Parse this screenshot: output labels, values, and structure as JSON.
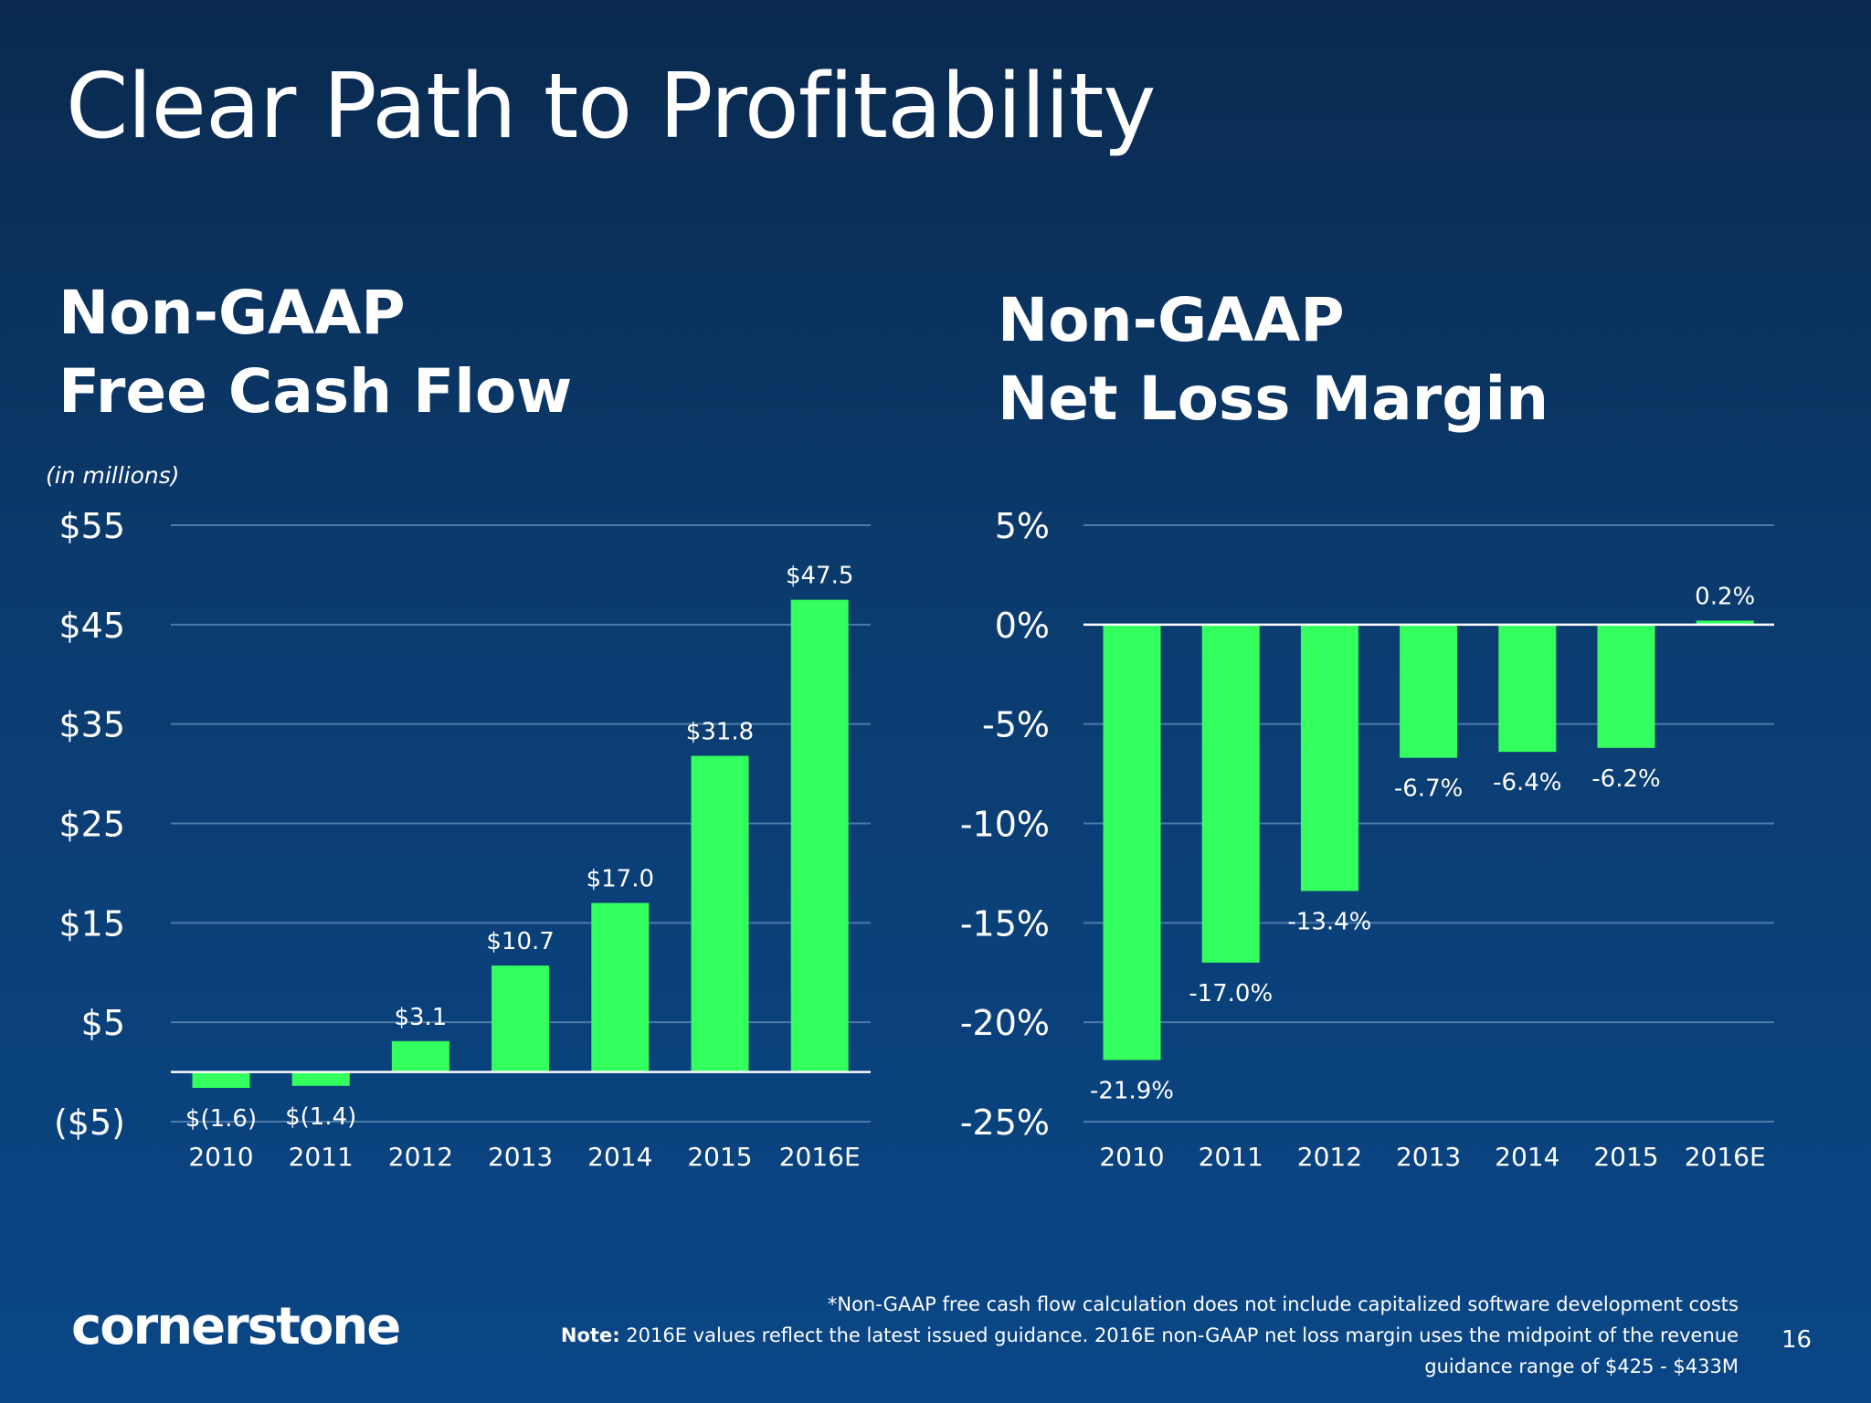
{
  "title": "Clear Path to Profitability",
  "logo": "cornerstone",
  "page_number": "16",
  "footnotes": {
    "line1": "*Non-GAAP free cash flow calculation does not include capitalized software development costs",
    "note_label": "Note:",
    "line2": " 2016E values reflect the latest issued guidance.  2016E non-GAAP net loss margin uses the midpoint of the revenue",
    "line3": "guidance range of $425 - $433M"
  },
  "colors": {
    "bar": "#33ff5e",
    "grid": "#4d7aa8",
    "zero": "#ffffff"
  },
  "chart_data": [
    {
      "type": "bar",
      "title_line1": "Non-GAAP",
      "title_line2": "Free Cash Flow",
      "unit_note": "(in millions)",
      "categories": [
        "2010",
        "2011",
        "2012",
        "2013",
        "2014",
        "2015",
        "2016E"
      ],
      "values": [
        -1.6,
        -1.4,
        3.1,
        10.7,
        17.0,
        31.8,
        47.5
      ],
      "labels": [
        "$(1.6)",
        "$(1.4)",
        "$3.1",
        "$10.7",
        "$17.0",
        "$31.8",
        "$47.5"
      ],
      "yticks": [
        55,
        45,
        35,
        25,
        15,
        5,
        -5
      ],
      "ytick_labels": [
        "$55",
        "$45",
        "$35",
        "$25",
        "$15",
        "$5",
        "($5)"
      ],
      "ylim": [
        -5,
        55
      ],
      "grid": true
    },
    {
      "type": "bar",
      "title_line1": "Non-GAAP",
      "title_line2": "Net Loss Margin",
      "categories": [
        "2010",
        "2011",
        "2012",
        "2013",
        "2014",
        "2015",
        "2016E"
      ],
      "values": [
        -21.9,
        -17.0,
        -13.4,
        -6.7,
        -6.4,
        -6.2,
        0.2
      ],
      "labels": [
        "-21.9%",
        "-17.0%",
        "-13.4%",
        "-6.7%",
        "-6.4%",
        "-6.2%",
        "0.2%"
      ],
      "yticks": [
        5,
        0,
        -5,
        -10,
        -15,
        -20,
        -25
      ],
      "ytick_labels": [
        "5%",
        "0%",
        "-5%",
        "-10%",
        "-15%",
        "-20%",
        "-25%"
      ],
      "ylim": [
        -25,
        5
      ],
      "grid": true
    }
  ]
}
